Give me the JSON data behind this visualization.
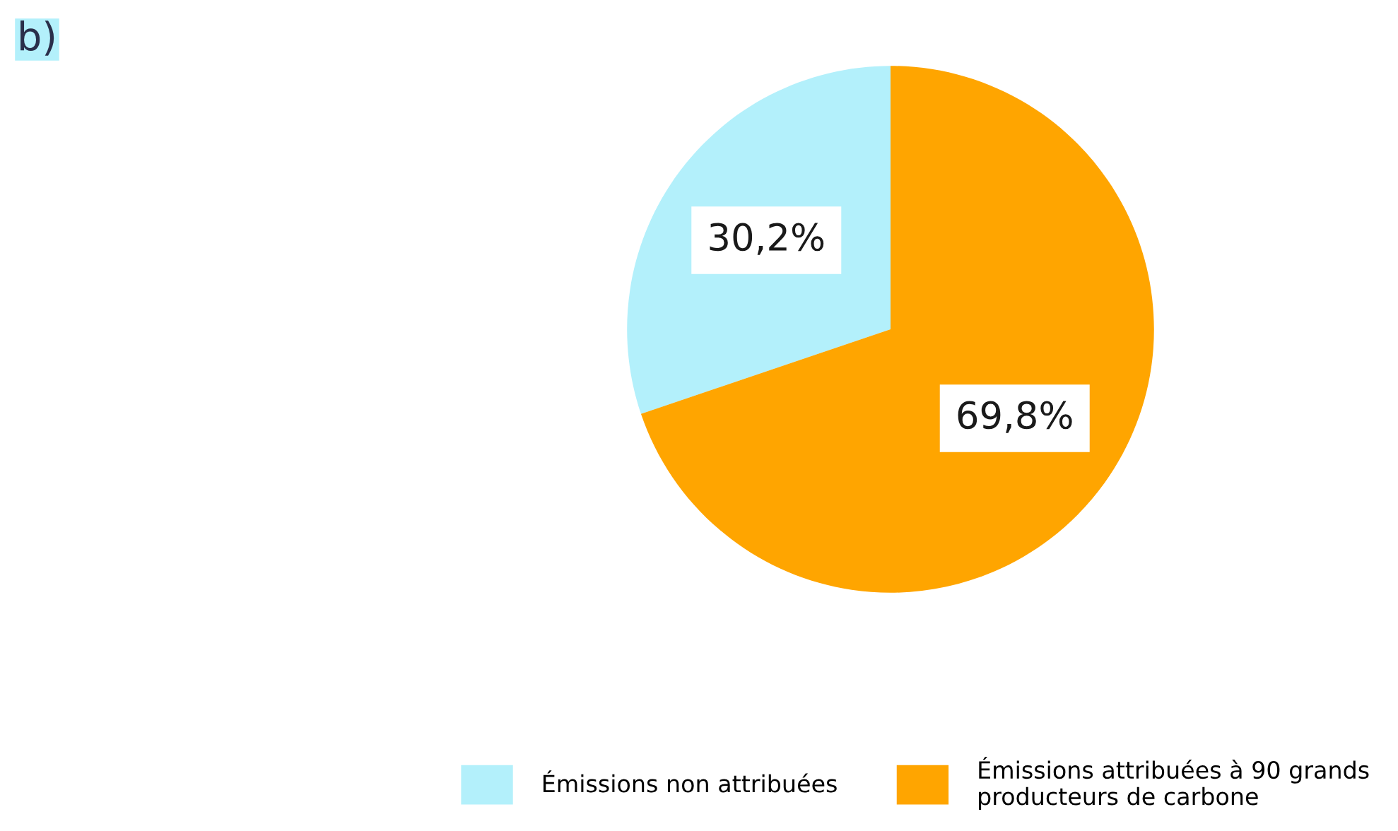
{
  "chart_data": {
    "type": "pie",
    "title": "b)",
    "categories": [
      "Émissions non attribuées",
      "Émissions attribuées à 90 grands\nproducteurs de carbone"
    ],
    "values": [
      30.2,
      69.8
    ],
    "colors": [
      "#b3f0fb",
      "#ffa500"
    ],
    "value_labels": [
      "30,2%",
      "69,8%"
    ],
    "legend": "bottom right"
  }
}
